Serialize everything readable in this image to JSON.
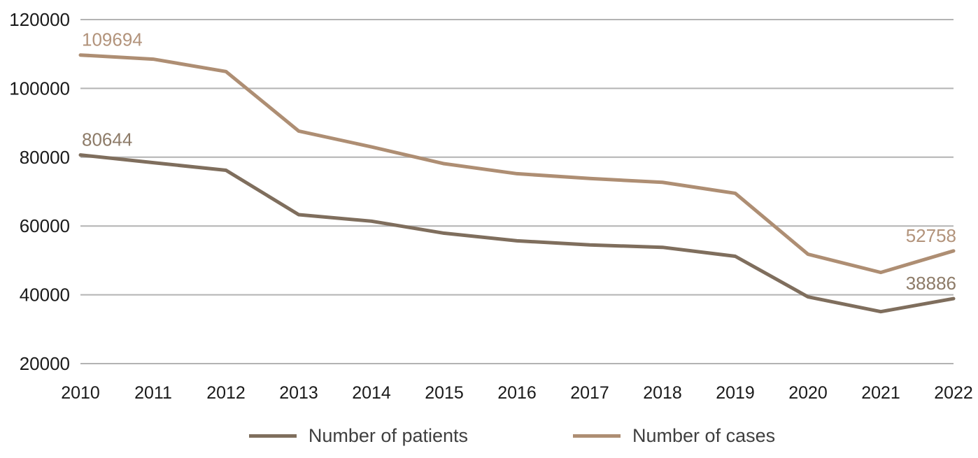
{
  "chart_data": {
    "type": "line",
    "title": "",
    "xlabel": "",
    "ylabel": "",
    "categories": [
      "2010",
      "2011",
      "2012",
      "2013",
      "2014",
      "2015",
      "2016",
      "2017",
      "2018",
      "2019",
      "2020",
      "2021",
      "2022"
    ],
    "ylim": [
      20000,
      120000
    ],
    "yticks": [
      20000,
      40000,
      60000,
      80000,
      100000,
      120000
    ],
    "ytick_labels": [
      "20000",
      "40000",
      "60000",
      "80000",
      "100000",
      "120000"
    ],
    "grid": "horizontal",
    "legend_position": "bottom",
    "series": [
      {
        "name": "Number of patients",
        "color": "#7f6e5d",
        "label_color": "#8d7b68",
        "values": [
          80644,
          78400,
          76200,
          63300,
          61400,
          57900,
          55700,
          54500,
          53800,
          51200,
          39400,
          35100,
          38886
        ],
        "first_point_label": "80644",
        "last_point_label": "38886"
      },
      {
        "name": "Number of cases",
        "color": "#ae8e73",
        "label_color": "#b2937b",
        "values": [
          109694,
          108500,
          104900,
          87600,
          83000,
          78100,
          75200,
          73800,
          72700,
          69500,
          51800,
          46500,
          52758
        ],
        "first_point_label": "109694",
        "last_point_label": "52758"
      }
    ]
  },
  "colors": {
    "background": "#ffffff",
    "gridline": "#b3b3b3",
    "axis_text": "#1a1a1a",
    "legend_text": "#3f3f3f"
  }
}
